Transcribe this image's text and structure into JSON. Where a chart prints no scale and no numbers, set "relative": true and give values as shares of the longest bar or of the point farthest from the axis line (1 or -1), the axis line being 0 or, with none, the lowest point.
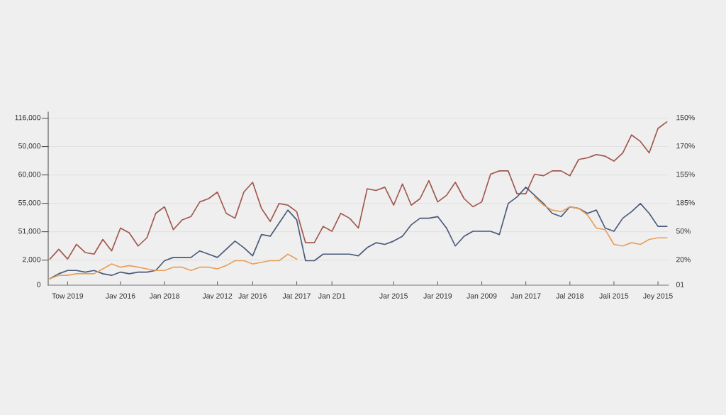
{
  "chart_data": {
    "type": "line",
    "relative": true,
    "categories": [
      null,
      null,
      "Tow 2019",
      null,
      null,
      null,
      null,
      null,
      "Jav 2016",
      null,
      null,
      null,
      null,
      "Jan 2018",
      null,
      null,
      null,
      null,
      null,
      "Jav 2012",
      null,
      null,
      null,
      "Jar 2016",
      null,
      null,
      null,
      null,
      "Jat 2017",
      null,
      null,
      null,
      "Jan 2D1",
      null,
      null,
      null,
      null,
      null,
      null,
      "Jar 2015",
      null,
      null,
      null,
      null,
      "Jar 2019",
      null,
      null,
      null,
      null,
      "Jan 2009",
      null,
      null,
      null,
      null,
      "Jan 2017",
      null,
      null,
      null,
      null,
      "Jal 2018",
      null,
      null,
      null,
      null,
      "Jali 2015",
      null,
      null,
      null,
      null,
      "Jey 2015",
      null
    ],
    "annotations": [
      "0",
      "2,000",
      "51,000",
      "55,000",
      "60,000",
      "50,000",
      "116,000",
      "01",
      "20%",
      "50%",
      "185%",
      "155%",
      "170%",
      "150%"
    ],
    "grid": "y",
    "marker": "none",
    "line_style": "solid",
    "series": [
      {
        "color": "#a0584f",
        "values": [
          0.16,
          0.22,
          0.16,
          0.25,
          0.2,
          0.19,
          0.28,
          0.21,
          0.35,
          0.32,
          0.24,
          0.29,
          0.44,
          0.48,
          0.34,
          0.4,
          0.42,
          0.51,
          0.53,
          0.57,
          0.44,
          0.41,
          0.57,
          0.63,
          0.47,
          0.39,
          0.5,
          0.49,
          0.45,
          0.26,
          0.26,
          0.36,
          0.33,
          0.44,
          0.41,
          0.35,
          0.59,
          0.58,
          0.6,
          0.49,
          0.62,
          0.49,
          0.53,
          0.64,
          0.51,
          0.55,
          0.63,
          0.53,
          0.48,
          0.51,
          0.68,
          0.7,
          0.7,
          0.56,
          0.56,
          0.68,
          0.67,
          0.7,
          0.7,
          0.67,
          0.77,
          0.78,
          0.8,
          0.79,
          0.76,
          0.81,
          0.92,
          0.88,
          0.81,
          0.96,
          1
        ]
      },
      {
        "color": "#4a5a7a",
        "values": [
          0.04,
          0.07,
          0.09,
          0.09,
          0.08,
          0.09,
          0.07,
          0.06,
          0.08,
          0.07,
          0.08,
          0.08,
          0.09,
          0.15,
          0.17,
          0.17,
          0.17,
          0.21,
          0.19,
          0.17,
          0.22,
          0.27,
          0.23,
          0.18,
          0.31,
          0.3,
          0.38,
          0.46,
          0.4,
          0.15,
          0.15,
          0.19,
          0.19,
          0.19,
          0.19,
          0.18,
          0.23,
          0.26,
          0.25,
          0.27,
          0.3,
          0.37,
          0.41,
          0.41,
          0.42,
          0.35,
          0.24,
          0.3,
          0.33,
          0.33,
          0.33,
          0.31,
          0.5,
          0.54,
          0.6,
          0.55,
          0.5,
          0.44,
          0.42,
          0.48,
          0.47,
          0.44,
          0.46,
          0.35,
          0.33,
          0.41,
          0.45,
          0.5,
          0.44,
          0.36,
          0.36
        ]
      },
      {
        "color": "#e8a05a",
        "values": [
          0.04,
          0.06,
          0.06,
          0.07,
          0.07,
          0.07,
          0.1,
          0.13,
          0.11,
          0.12,
          0.11,
          0.1,
          0.09,
          0.09,
          0.11,
          0.11,
          0.09,
          0.11,
          0.11,
          0.1,
          0.12,
          0.15,
          0.15,
          0.13,
          0.14,
          0.15,
          0.15,
          0.19,
          0.16,
          null,
          null,
          null,
          null,
          null,
          null,
          null,
          null,
          null,
          null,
          null,
          null,
          null,
          null,
          null,
          null,
          null,
          null,
          null,
          null,
          null,
          null,
          null,
          null,
          null,
          null,
          0.54,
          0.49,
          0.46,
          0.45,
          0.48,
          0.47,
          0.43,
          0.35,
          0.34,
          0.25,
          0.24,
          0.26,
          0.25,
          0.28,
          0.29,
          0.29
        ]
      }
    ]
  }
}
